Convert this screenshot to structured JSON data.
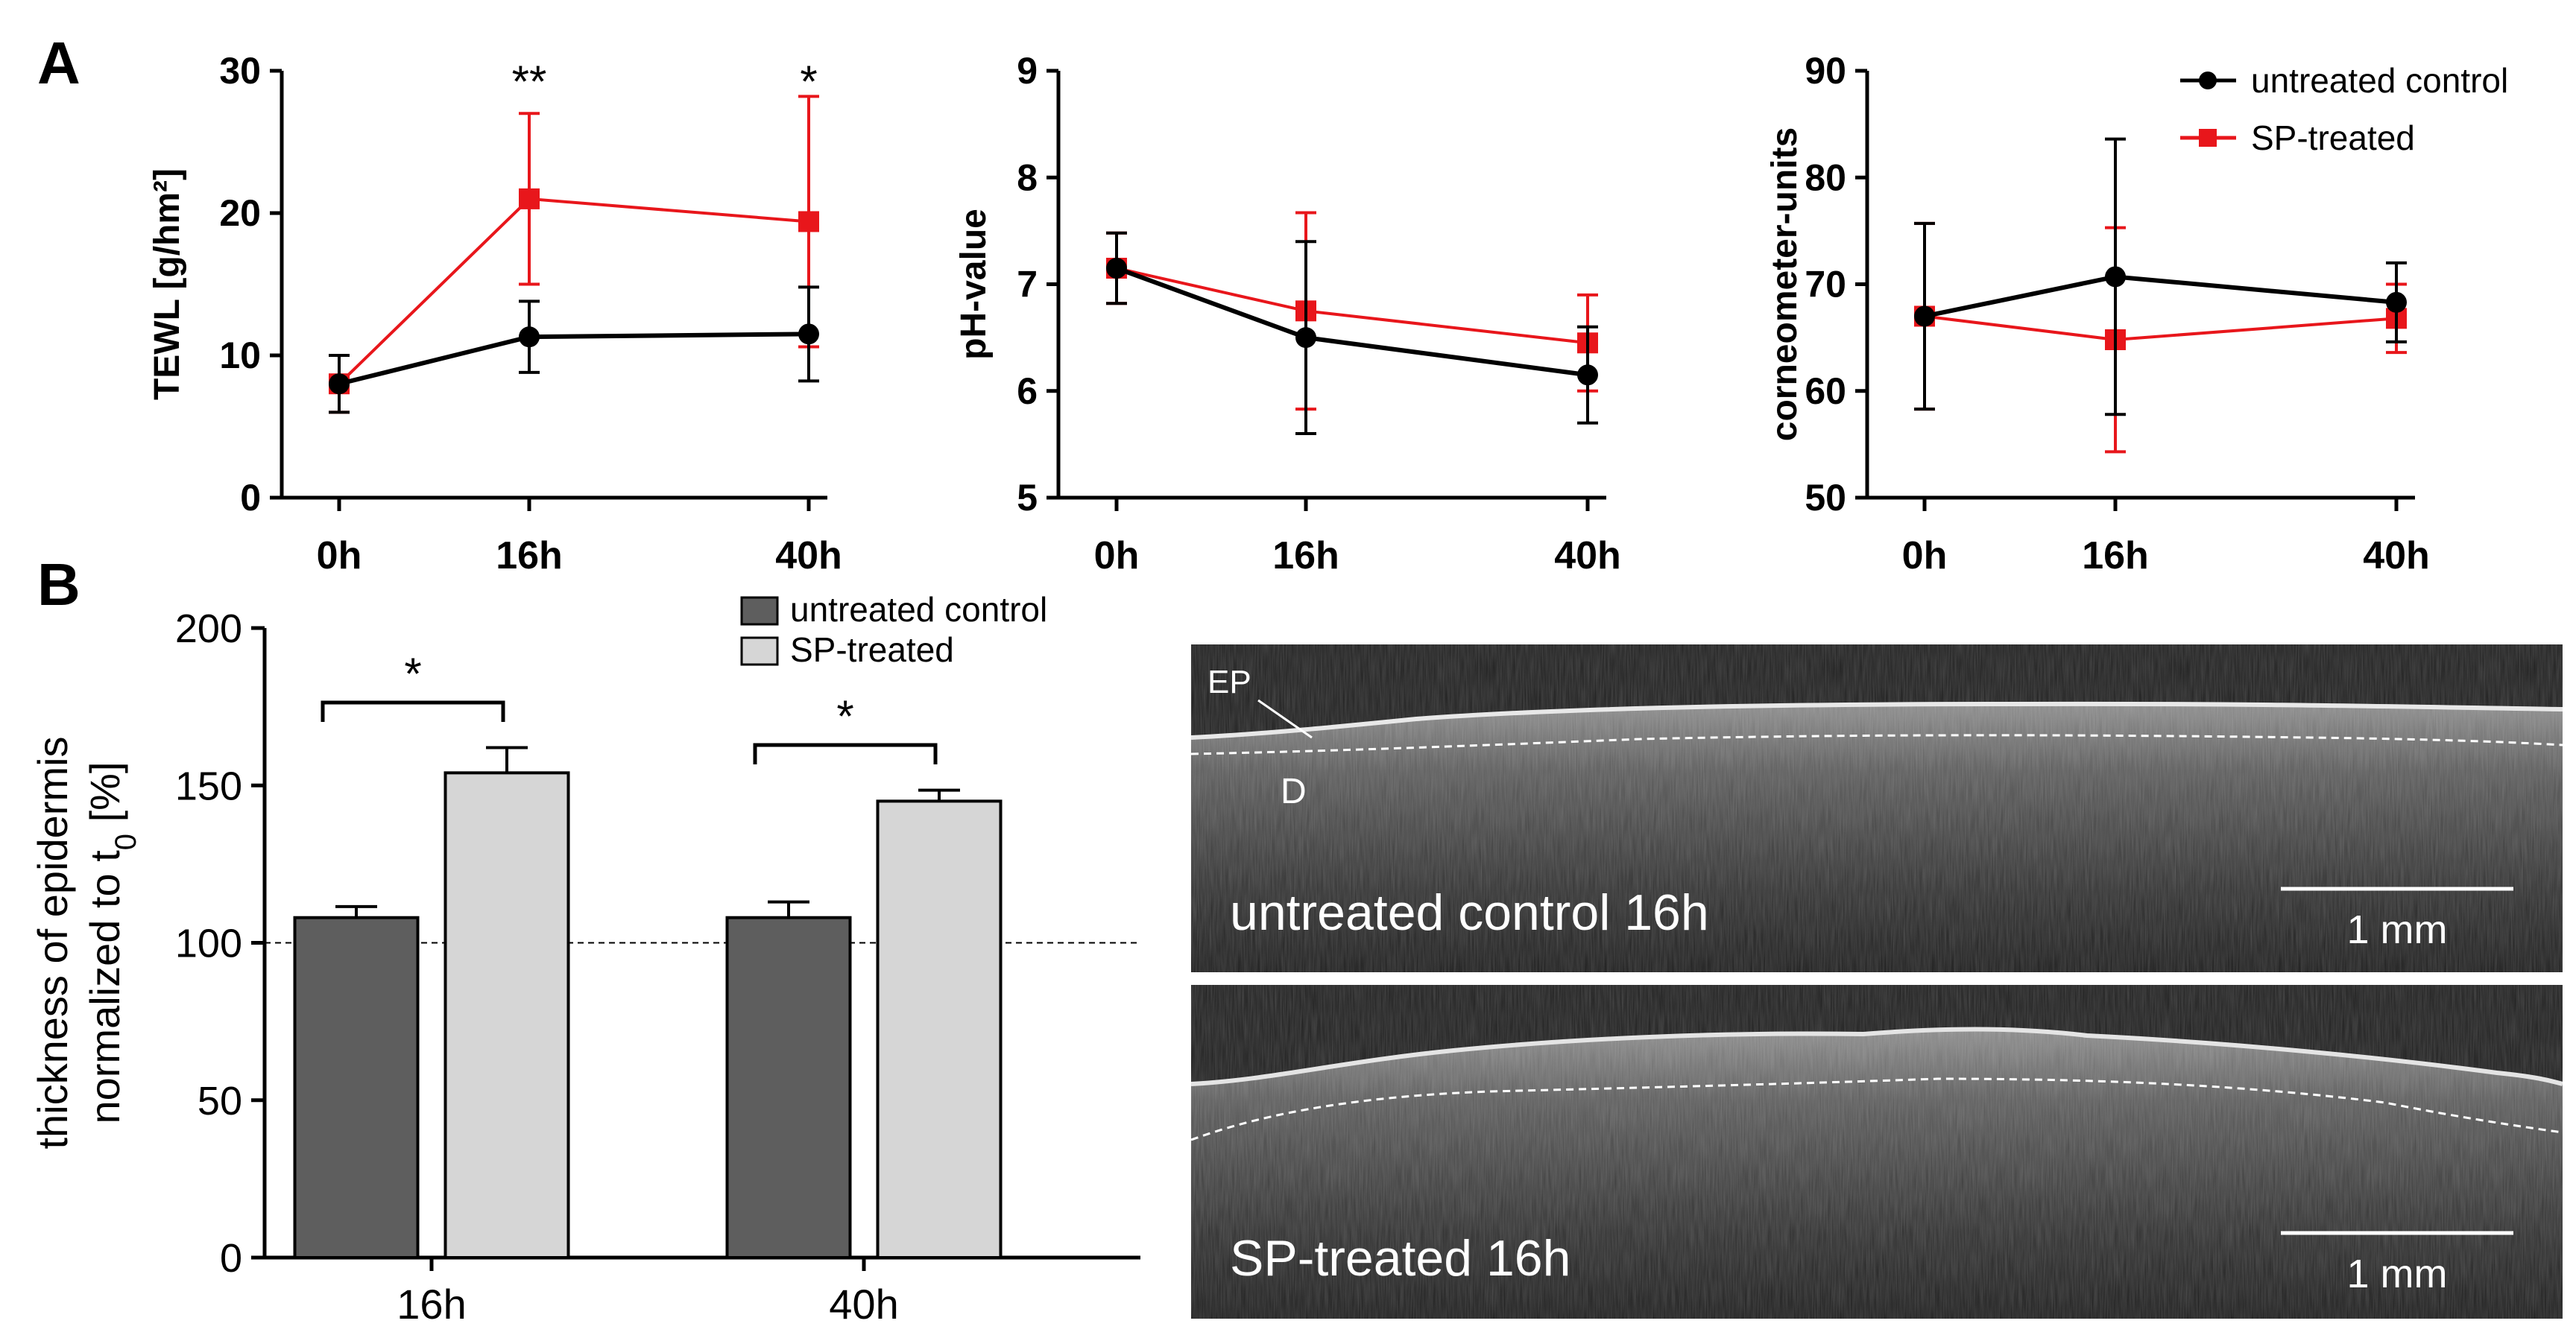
{
  "panel_labels": {
    "a": "A",
    "b": "B"
  },
  "colors": {
    "control": "#000000",
    "treated": "#e8161b",
    "bar_control": "#5e5e5e",
    "bar_treated": "#d6d6d6",
    "oct_bg": "#1e1e1e"
  },
  "chart_data": [
    {
      "type": "line",
      "panel": "A",
      "ylabel": "TEWL [g/hm²]",
      "x": [
        "0h",
        "16h",
        "40h"
      ],
      "x_hours": [
        0,
        16,
        40
      ],
      "ylim": [
        0,
        30
      ],
      "yticks": [
        0,
        10,
        20,
        30
      ],
      "series": [
        {
          "name": "untreated control",
          "color": "#000000",
          "marker": "circle",
          "values": [
            8,
            11.3,
            11.5
          ],
          "errors": [
            2,
            2.5,
            3.3
          ]
        },
        {
          "name": "SP-treated",
          "color": "#e8161b",
          "marker": "square",
          "values": [
            8,
            21,
            19.4
          ],
          "errors": [
            2,
            6,
            8.8
          ]
        }
      ],
      "annotations": [
        {
          "x": "16h",
          "text": "**"
        },
        {
          "x": "40h",
          "text": "*"
        }
      ]
    },
    {
      "type": "line",
      "panel": "A",
      "ylabel": "pH-value",
      "x": [
        "0h",
        "16h",
        "40h"
      ],
      "x_hours": [
        0,
        16,
        40
      ],
      "ylim": [
        5,
        9
      ],
      "yticks": [
        5,
        6,
        7,
        8,
        9
      ],
      "series": [
        {
          "name": "untreated control",
          "color": "#000000",
          "marker": "circle",
          "values": [
            7.15,
            6.5,
            6.15
          ],
          "errors": [
            0.33,
            0.9,
            0.45
          ]
        },
        {
          "name": "SP-treated",
          "color": "#e8161b",
          "marker": "square",
          "values": [
            7.15,
            6.75,
            6.45
          ],
          "errors": [
            0.33,
            0.92,
            0.45
          ]
        }
      ],
      "annotations": []
    },
    {
      "type": "line",
      "panel": "A",
      "ylabel": "corneometer-units",
      "x": [
        "0h",
        "16h",
        "40h"
      ],
      "x_hours": [
        0,
        16,
        40
      ],
      "ylim": [
        50,
        90
      ],
      "yticks": [
        50,
        60,
        70,
        80,
        90
      ],
      "legend": {
        "placement": "top-right",
        "entries": [
          "untreated control",
          "SP-treated"
        ]
      },
      "series": [
        {
          "name": "untreated control",
          "color": "#000000",
          "marker": "circle",
          "values": [
            67,
            70.7,
            68.3
          ],
          "errors": [
            8.7,
            12.9,
            3.7
          ]
        },
        {
          "name": "SP-treated",
          "color": "#e8161b",
          "marker": "square",
          "values": [
            67,
            64.8,
            66.8
          ],
          "errors": [
            8.7,
            10.5,
            3.2
          ]
        }
      ],
      "annotations": []
    },
    {
      "type": "bar",
      "panel": "B",
      "ylabel_line1": "thickness of epidermis",
      "ylabel_line2_main": "normalized to t",
      "ylabel_line2_sub": "0",
      "ylabel_line2_tail": " [%]",
      "categories": [
        "16h",
        "40h"
      ],
      "ylim": [
        0,
        200
      ],
      "yticks": [
        0,
        50,
        100,
        150,
        200
      ],
      "reference_line": 100,
      "legend": {
        "placement": "top",
        "entries": [
          "untreated control",
          "SP-treated"
        ]
      },
      "series": [
        {
          "name": "untreated control",
          "color": "#5e5e5e",
          "values": [
            108,
            108
          ],
          "errors": [
            3.5,
            5
          ]
        },
        {
          "name": "SP-treated",
          "color": "#d6d6d6",
          "values": [
            154,
            145
          ],
          "errors": [
            8,
            3.5
          ]
        }
      ],
      "significance": [
        {
          "category": "16h",
          "text": "*"
        },
        {
          "category": "40h",
          "text": "*"
        }
      ]
    }
  ],
  "oct_images": [
    {
      "caption": "untreated control 16h",
      "scale_label": "1 mm",
      "labels": [
        "EP",
        "D"
      ]
    },
    {
      "caption": "SP-treated 16h",
      "scale_label": "1 mm"
    }
  ]
}
